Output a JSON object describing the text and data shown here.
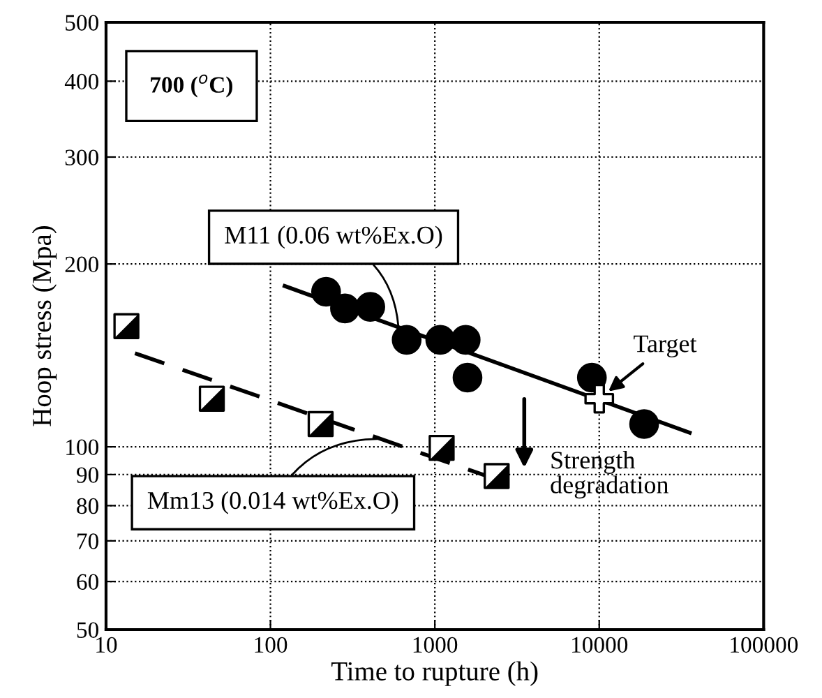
{
  "chart_data": {
    "type": "scatter",
    "xlabel": "Time to rupture (h)",
    "ylabel": "Hoop stress (Mpa)",
    "log": "xy",
    "grid": true,
    "legend": false,
    "xlim": [
      10,
      100000
    ],
    "xticks": [
      10,
      100,
      1000,
      10000,
      100000
    ],
    "ylim": [
      50,
      500
    ],
    "yticks": [
      50,
      60,
      70,
      80,
      90,
      100,
      200,
      300,
      400,
      500
    ],
    "series": [
      {
        "marker": "circle",
        "color": "#000000",
        "x": [
          218,
          284,
          405,
          674,
          1079,
          1540,
          1580,
          9020,
          18750
        ],
        "values": [
          180,
          169,
          170,
          150,
          150,
          150,
          130,
          130,
          109
        ]
      },
      {
        "type": "line",
        "marker": "none",
        "line_style": "solid",
        "color": "#000000",
        "x": [
          122,
          35500
        ],
        "values": [
          184,
          105.5
        ]
      },
      {
        "marker": "square",
        "color": "#000000",
        "x": [
          13.3,
          44,
          202,
          1100,
          2377
        ],
        "values": [
          158,
          120,
          109,
          99.6,
          89.5
        ]
      },
      {
        "type": "line",
        "marker": "none",
        "line_style": "dashed",
        "color": "#000000",
        "x": [
          15,
          3090
        ],
        "values": [
          142.6,
          86.2
        ]
      },
      {
        "marker": "cross",
        "color": "#ffffff",
        "x": [
          10000
        ],
        "values": [
          120
        ]
      }
    ],
    "annotations": [
      "700 ($^{o}$C)",
      {
        "text": "M11 (0.06 wt%Ex.O)",
        "x": 600,
        "y": 158
      },
      {
        "text": "Mm13 (0.014 wt%Ex.O)",
        "x": 445,
        "y": 103
      },
      {
        "text": "Target",
        "x": 10000,
        "y": 120
      },
      "Strength degradation"
    ]
  }
}
